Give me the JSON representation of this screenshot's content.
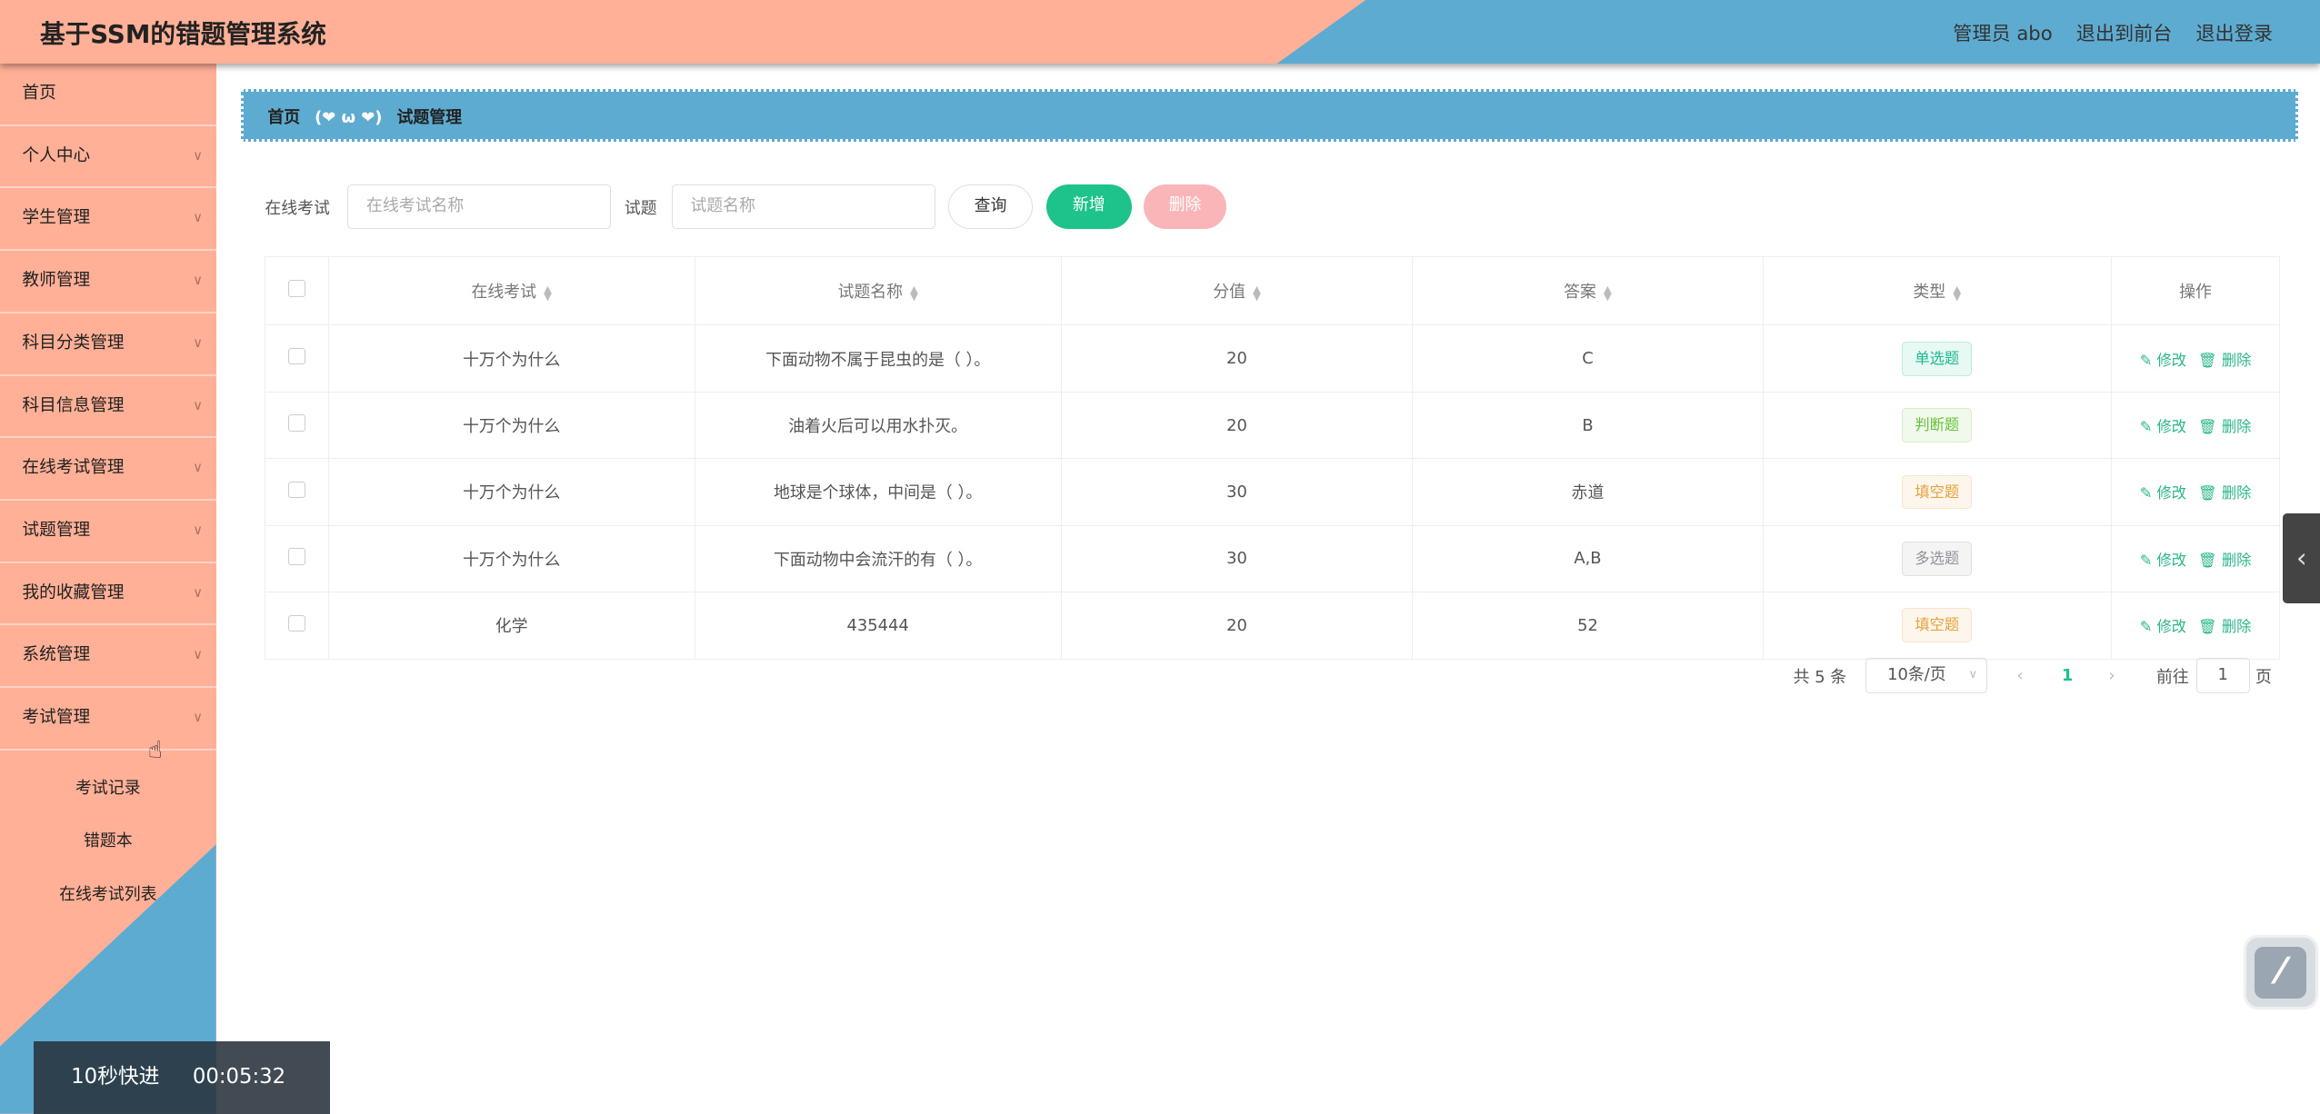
{
  "header": {
    "title": "基于SSM的错题管理系统",
    "user": "管理员 abo",
    "front": "退出到前台",
    "logout": "退出登录"
  },
  "sidebar": {
    "items": [
      {
        "label": "首页"
      },
      {
        "label": "个人中心"
      },
      {
        "label": "学生管理"
      },
      {
        "label": "教师管理"
      },
      {
        "label": "科目分类管理"
      },
      {
        "label": "科目信息管理"
      },
      {
        "label": "在线考试管理"
      },
      {
        "label": "试题管理"
      },
      {
        "label": "我的收藏管理"
      },
      {
        "label": "系统管理"
      },
      {
        "label": "考试管理"
      }
    ],
    "sub": [
      {
        "label": "考试记录"
      },
      {
        "label": "错题本"
      },
      {
        "label": "在线考试列表"
      }
    ]
  },
  "breadcrumb": {
    "home": "首页",
    "face": "(❤ ω ❤)",
    "current": "试题管理"
  },
  "search": {
    "exam_label": "在线考试",
    "exam_placeholder": "在线考试名称",
    "q_label": "试题",
    "q_placeholder": "试题名称",
    "query": "查询",
    "add": "新增",
    "delete": "删除"
  },
  "table": {
    "headers": [
      "在线考试",
      "试题名称",
      "分值",
      "答案",
      "类型",
      "操作"
    ],
    "rows": [
      {
        "exam": "十万个为什么",
        "name": "下面动物不属于昆虫的是（ ）。",
        "score": "20",
        "answer": "C",
        "type": "单选题"
      },
      {
        "exam": "十万个为什么",
        "name": "油着火后可以用水扑灭。",
        "score": "20",
        "answer": "B",
        "type": "判断题"
      },
      {
        "exam": "十万个为什么",
        "name": "地球是个球体，中间是（ ）。",
        "score": "30",
        "answer": "赤道",
        "type": "填空题"
      },
      {
        "exam": "十万个为什么",
        "name": "下面动物中会流汗的有（ ）。",
        "score": "30",
        "answer": "A,B",
        "type": "多选题"
      },
      {
        "exam": "化学",
        "name": "435444",
        "score": "20",
        "answer": "52",
        "type": "填空题"
      }
    ],
    "edit": "修改",
    "remove": "删除"
  },
  "tag_colors": {
    "单选题": "#1bb98f",
    "判断题": "#67c23a",
    "填空题": "#e6a23c",
    "多选题": "#909399"
  },
  "pagination": {
    "total": "共 5 条",
    "page_size": "10条/页",
    "current": "1",
    "goto": "前往",
    "goto_value": "1",
    "page_suffix": "页"
  },
  "video": {
    "label": "10秒快进",
    "time": "00:05:32"
  },
  "colors": {
    "salmon": "#FFB096",
    "blue": "#5DABD1",
    "green": "#1EC28B",
    "pink": "#F9B5B8"
  }
}
